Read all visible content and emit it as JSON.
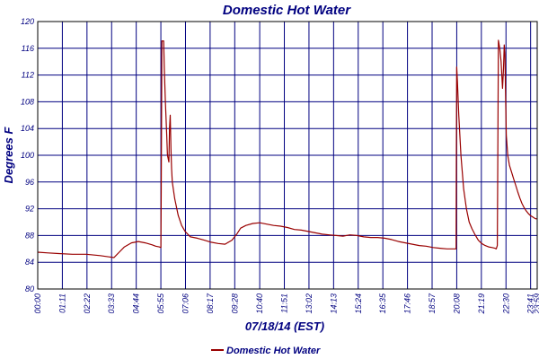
{
  "chart_data": {
    "type": "line",
    "title": "Domestic Hot Water",
    "xlabel": "07/18/14 (EST)",
    "ylabel": "Degrees F",
    "ylim": [
      80,
      120
    ],
    "yticks": [
      80,
      84,
      88,
      92,
      96,
      100,
      104,
      108,
      112,
      116,
      120
    ],
    "xlim_minutes": [
      0,
      1440
    ],
    "xtick_minutes": [
      0,
      71,
      142,
      213,
      284,
      355,
      426,
      497,
      568,
      640,
      711,
      782,
      853,
      924,
      995,
      1066,
      1137,
      1208,
      1279,
      1350,
      1421,
      1440
    ],
    "xtick_labels": [
      "00:00",
      "01:11",
      "02:22",
      "03:33",
      "04:44",
      "05:55",
      "07:06",
      "08:17",
      "09:28",
      "10:40",
      "11:51",
      "13:02",
      "14:13",
      "15:24",
      "16:35",
      "17:46",
      "18:57",
      "20:08",
      "21:19",
      "22:30",
      "23:41",
      "23:59"
    ],
    "grid": true,
    "legend": "bottom-center",
    "series": [
      {
        "name": "Domestic Hot Water",
        "color": "#990000",
        "x_minutes": [
          0,
          30,
          60,
          100,
          140,
          180,
          205,
          220,
          235,
          250,
          270,
          290,
          310,
          330,
          340,
          350,
          355,
          356,
          358,
          363,
          365,
          368,
          372,
          374,
          378,
          380,
          382,
          384,
          386,
          388,
          395,
          405,
          415,
          425,
          440,
          460,
          480,
          500,
          520,
          540,
          560,
          575,
          585,
          600,
          620,
          640,
          660,
          680,
          700,
          720,
          740,
          760,
          780,
          800,
          820,
          840,
          860,
          880,
          900,
          920,
          940,
          960,
          980,
          1000,
          1020,
          1040,
          1060,
          1080,
          1100,
          1120,
          1140,
          1160,
          1180,
          1200,
          1206,
          1207,
          1208,
          1210,
          1214,
          1220,
          1228,
          1236,
          1244,
          1252,
          1260,
          1270,
          1280,
          1290,
          1300,
          1310,
          1318,
          1322,
          1325,
          1326,
          1328,
          1332,
          1336,
          1340,
          1343,
          1345,
          1347,
          1349,
          1351,
          1355,
          1360,
          1366,
          1372,
          1378,
          1384,
          1390,
          1396,
          1402,
          1408,
          1414,
          1420,
          1426,
          1432,
          1436,
          1440
        ],
        "values": [
          85.5,
          85.4,
          85.3,
          85.2,
          85.2,
          85.0,
          84.8,
          84.7,
          85.5,
          86.3,
          86.9,
          87.1,
          86.9,
          86.6,
          86.4,
          86.3,
          86.2,
          95.0,
          117.1,
          117.1,
          113.0,
          108.0,
          103.0,
          100.0,
          99.0,
          104.0,
          106.0,
          101.0,
          98.0,
          96.0,
          93.5,
          91.0,
          89.5,
          88.6,
          87.8,
          87.6,
          87.3,
          87.0,
          86.8,
          86.7,
          87.3,
          88.3,
          89.1,
          89.5,
          89.8,
          89.9,
          89.7,
          89.5,
          89.4,
          89.2,
          88.9,
          88.8,
          88.6,
          88.4,
          88.2,
          88.1,
          88.0,
          87.9,
          88.1,
          88.0,
          87.8,
          87.7,
          87.7,
          87.6,
          87.4,
          87.1,
          86.9,
          86.7,
          86.5,
          86.4,
          86.2,
          86.1,
          86.0,
          86.0,
          86.0,
          100.0,
          113.2,
          111.0,
          106.0,
          100.0,
          95.0,
          92.0,
          90.0,
          89.0,
          88.2,
          87.3,
          86.8,
          86.5,
          86.3,
          86.2,
          86.1,
          86.0,
          86.5,
          96.0,
          117.2,
          116.0,
          114.0,
          110.0,
          113.0,
          116.5,
          115.0,
          108.0,
          103.0,
          100.0,
          98.5,
          97.5,
          96.5,
          95.5,
          94.5,
          93.6,
          92.8,
          92.2,
          91.7,
          91.3,
          91.0,
          90.8,
          90.6,
          90.5,
          90.5
        ]
      }
    ]
  }
}
